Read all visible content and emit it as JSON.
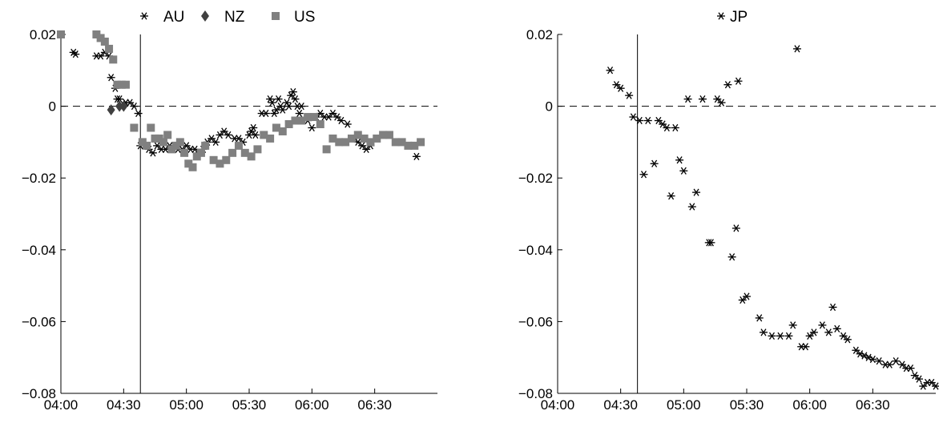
{
  "chart_data": [
    {
      "type": "scatter",
      "title": "",
      "xlabel": "",
      "ylabel": "",
      "x_unit": "time (HH:MM)",
      "xlim": [
        "04:00",
        "07:00"
      ],
      "ylim": [
        -0.08,
        0.02
      ],
      "x_ticks": [
        "04:00",
        "04:30",
        "05:00",
        "05:30",
        "06:00",
        "06:30"
      ],
      "y_ticks": [
        "0.02",
        "0",
        "−0.02",
        "−0.04",
        "−0.06",
        "−0.08"
      ],
      "y_tick_values": [
        0.02,
        0,
        -0.02,
        -0.04,
        -0.06,
        -0.08
      ],
      "reference_hline": 0,
      "reference_vline": "04:38",
      "grid": false,
      "legend_position": "top-center",
      "series": [
        {
          "name": "AU",
          "marker": "asterisk",
          "color": "#000000",
          "points": [
            [
              "04:06",
              0.015
            ],
            [
              "04:07",
              0.0145
            ],
            [
              "04:17",
              0.014
            ],
            [
              "04:19",
              0.014
            ],
            [
              "04:21",
              0.015
            ],
            [
              "04:23",
              0.014
            ],
            [
              "04:24",
              0.008
            ],
            [
              "04:26",
              0.005
            ],
            [
              "04:27",
              0.002
            ],
            [
              "04:28",
              0.002
            ],
            [
              "04:29",
              0.0
            ],
            [
              "04:31",
              0.001
            ],
            [
              "04:33",
              0.001
            ],
            [
              "04:35",
              0.0
            ],
            [
              "04:37",
              -0.002
            ],
            [
              "04:38",
              -0.011
            ],
            [
              "04:40",
              -0.011
            ],
            [
              "04:42",
              -0.012
            ],
            [
              "04:44",
              -0.013
            ],
            [
              "04:46",
              -0.011
            ],
            [
              "04:48",
              -0.012
            ],
            [
              "04:50",
              -0.012
            ],
            [
              "04:52",
              -0.011
            ],
            [
              "04:54",
              -0.011
            ],
            [
              "04:56",
              -0.012
            ],
            [
              "04:58",
              -0.012
            ],
            [
              "05:00",
              -0.011
            ],
            [
              "05:02",
              -0.012
            ],
            [
              "05:04",
              -0.012
            ],
            [
              "05:06",
              -0.013
            ],
            [
              "05:08",
              -0.012
            ],
            [
              "05:10",
              -0.01
            ],
            [
              "05:12",
              -0.009
            ],
            [
              "05:14",
              -0.01
            ],
            [
              "05:16",
              -0.008
            ],
            [
              "05:18",
              -0.007
            ],
            [
              "05:20",
              -0.008
            ],
            [
              "05:23",
              -0.009
            ],
            [
              "05:25",
              -0.009
            ],
            [
              "05:27",
              -0.01
            ],
            [
              "05:30",
              -0.008
            ],
            [
              "05:31",
              -0.007
            ],
            [
              "05:32",
              -0.006
            ],
            [
              "05:33",
              -0.008
            ],
            [
              "05:36",
              -0.002
            ],
            [
              "05:38",
              -0.002
            ],
            [
              "05:40",
              0.002
            ],
            [
              "05:41",
              0.001
            ],
            [
              "05:42",
              -0.002
            ],
            [
              "05:43",
              -0.001
            ],
            [
              "05:44",
              0.002
            ],
            [
              "05:45",
              0.0
            ],
            [
              "05:46",
              -0.001
            ],
            [
              "05:48",
              0.001
            ],
            [
              "05:49",
              0.0
            ],
            [
              "05:50",
              0.003
            ],
            [
              "05:51",
              0.004
            ],
            [
              "05:52",
              0.002
            ],
            [
              "05:53",
              0.0
            ],
            [
              "05:54",
              -0.002
            ],
            [
              "05:55",
              0.0
            ],
            [
              "05:58",
              -0.004
            ],
            [
              "06:00",
              -0.006
            ],
            [
              "06:02",
              -0.003
            ],
            [
              "06:04",
              -0.002
            ],
            [
              "06:06",
              -0.003
            ],
            [
              "06:08",
              -0.003
            ],
            [
              "06:10",
              -0.002
            ],
            [
              "06:12",
              -0.003
            ],
            [
              "06:14",
              -0.004
            ],
            [
              "06:17",
              -0.005
            ],
            [
              "06:20",
              -0.009
            ],
            [
              "06:22",
              -0.01
            ],
            [
              "06:24",
              -0.011
            ],
            [
              "06:26",
              -0.012
            ],
            [
              "06:28",
              -0.011
            ],
            [
              "06:50",
              -0.014
            ]
          ]
        },
        {
          "name": "NZ",
          "marker": "diamond",
          "color": "#404040",
          "points": [
            [
              "04:24",
              -0.001
            ],
            [
              "04:28",
              0.0
            ],
            [
              "04:30",
              0.0
            ]
          ]
        },
        {
          "name": "US",
          "marker": "square",
          "color": "#808080",
          "points": [
            [
              "04:00",
              0.02
            ],
            [
              "04:17",
              0.02
            ],
            [
              "04:19",
              0.019
            ],
            [
              "04:21",
              0.018
            ],
            [
              "04:23",
              0.016
            ],
            [
              "04:25",
              0.013
            ],
            [
              "04:27",
              0.006
            ],
            [
              "04:29",
              0.006
            ],
            [
              "04:31",
              0.006
            ],
            [
              "04:35",
              -0.006
            ],
            [
              "04:39",
              -0.01
            ],
            [
              "04:41",
              -0.011
            ],
            [
              "04:43",
              -0.006
            ],
            [
              "04:45",
              -0.009
            ],
            [
              "04:47",
              -0.009
            ],
            [
              "04:49",
              -0.01
            ],
            [
              "04:51",
              -0.008
            ],
            [
              "04:53",
              -0.012
            ],
            [
              "04:55",
              -0.011
            ],
            [
              "04:57",
              -0.01
            ],
            [
              "04:59",
              -0.013
            ],
            [
              "05:01",
              -0.016
            ],
            [
              "05:03",
              -0.017
            ],
            [
              "05:05",
              -0.014
            ],
            [
              "05:07",
              -0.013
            ],
            [
              "05:09",
              -0.011
            ],
            [
              "05:13",
              -0.015
            ],
            [
              "05:16",
              -0.016
            ],
            [
              "05:19",
              -0.015
            ],
            [
              "05:22",
              -0.013
            ],
            [
              "05:25",
              -0.011
            ],
            [
              "05:28",
              -0.013
            ],
            [
              "05:31",
              -0.014
            ],
            [
              "05:34",
              -0.012
            ],
            [
              "05:37",
              -0.008
            ],
            [
              "05:40",
              -0.009
            ],
            [
              "05:43",
              -0.006
            ],
            [
              "05:46",
              -0.007
            ],
            [
              "05:49",
              -0.005
            ],
            [
              "05:52",
              -0.004
            ],
            [
              "05:55",
              -0.004
            ],
            [
              "05:58",
              -0.003
            ],
            [
              "06:01",
              -0.003
            ],
            [
              "06:04",
              -0.005
            ],
            [
              "06:07",
              -0.012
            ],
            [
              "06:10",
              -0.009
            ],
            [
              "06:13",
              -0.01
            ],
            [
              "06:16",
              -0.01
            ],
            [
              "06:19",
              -0.009
            ],
            [
              "06:22",
              -0.008
            ],
            [
              "06:25",
              -0.009
            ],
            [
              "06:28",
              -0.01
            ],
            [
              "06:31",
              -0.009
            ],
            [
              "06:34",
              -0.008
            ],
            [
              "06:37",
              -0.008
            ],
            [
              "06:40",
              -0.01
            ],
            [
              "06:43",
              -0.01
            ],
            [
              "06:46",
              -0.011
            ],
            [
              "06:49",
              -0.011
            ],
            [
              "06:52",
              -0.01
            ]
          ]
        }
      ]
    },
    {
      "type": "scatter",
      "title": "",
      "xlabel": "",
      "ylabel": "",
      "x_unit": "time (HH:MM)",
      "xlim": [
        "04:00",
        "07:00"
      ],
      "ylim": [
        -0.08,
        0.02
      ],
      "x_ticks": [
        "04:00",
        "04:30",
        "05:00",
        "05:30",
        "06:00",
        "06:30"
      ],
      "y_ticks": [
        "0.02",
        "0",
        "−0.02",
        "−0.04",
        "−0.06",
        "−0.08"
      ],
      "y_tick_values": [
        0.02,
        0,
        -0.02,
        -0.04,
        -0.06,
        -0.08
      ],
      "reference_hline": 0,
      "reference_vline": "04:38",
      "grid": false,
      "legend_position": "top-center",
      "series": [
        {
          "name": "JP",
          "marker": "asterisk",
          "color": "#000000",
          "points": [
            [
              "04:25",
              0.01
            ],
            [
              "04:28",
              0.006
            ],
            [
              "04:30",
              0.005
            ],
            [
              "04:34",
              0.003
            ],
            [
              "04:36",
              -0.003
            ],
            [
              "04:39",
              -0.004
            ],
            [
              "04:41",
              -0.019
            ],
            [
              "04:43",
              -0.004
            ],
            [
              "04:46",
              -0.016
            ],
            [
              "04:48",
              -0.004
            ],
            [
              "04:50",
              -0.005
            ],
            [
              "04:52",
              -0.006
            ],
            [
              "04:54",
              -0.025
            ],
            [
              "04:56",
              -0.006
            ],
            [
              "04:58",
              -0.015
            ],
            [
              "05:00",
              -0.018
            ],
            [
              "05:02",
              0.002
            ],
            [
              "05:04",
              -0.028
            ],
            [
              "05:06",
              -0.024
            ],
            [
              "05:09",
              0.002
            ],
            [
              "05:12",
              -0.038
            ],
            [
              "05:13",
              -0.038
            ],
            [
              "05:16",
              0.002
            ],
            [
              "05:18",
              0.001
            ],
            [
              "05:21",
              0.006
            ],
            [
              "05:23",
              -0.042
            ],
            [
              "05:25",
              -0.034
            ],
            [
              "05:26",
              0.007
            ],
            [
              "05:28",
              -0.054
            ],
            [
              "05:30",
              -0.053
            ],
            [
              "05:36",
              -0.059
            ],
            [
              "05:38",
              -0.063
            ],
            [
              "05:42",
              -0.064
            ],
            [
              "05:46",
              -0.064
            ],
            [
              "05:50",
              -0.064
            ],
            [
              "05:52",
              -0.061
            ],
            [
              "05:54",
              0.016
            ],
            [
              "05:56",
              -0.067
            ],
            [
              "05:58",
              -0.067
            ],
            [
              "06:00",
              -0.064
            ],
            [
              "06:02",
              -0.063
            ],
            [
              "06:06",
              -0.061
            ],
            [
              "06:09",
              -0.063
            ],
            [
              "06:11",
              -0.056
            ],
            [
              "06:13",
              -0.062
            ],
            [
              "06:16",
              -0.064
            ],
            [
              "06:18",
              -0.065
            ],
            [
              "06:22",
              -0.068
            ],
            [
              "06:24",
              -0.069
            ],
            [
              "06:26",
              -0.0695
            ],
            [
              "06:28",
              -0.07
            ],
            [
              "06:30",
              -0.0705
            ],
            [
              "06:33",
              -0.071
            ],
            [
              "06:36",
              -0.072
            ],
            [
              "06:38",
              -0.072
            ],
            [
              "06:41",
              -0.071
            ],
            [
              "06:44",
              -0.072
            ],
            [
              "06:46",
              -0.073
            ],
            [
              "06:48",
              -0.073
            ],
            [
              "06:50",
              -0.075
            ],
            [
              "06:52",
              -0.076
            ],
            [
              "06:54",
              -0.078
            ],
            [
              "06:56",
              -0.077
            ],
            [
              "06:58",
              -0.077
            ],
            [
              "07:00",
              -0.078
            ]
          ]
        }
      ]
    }
  ]
}
